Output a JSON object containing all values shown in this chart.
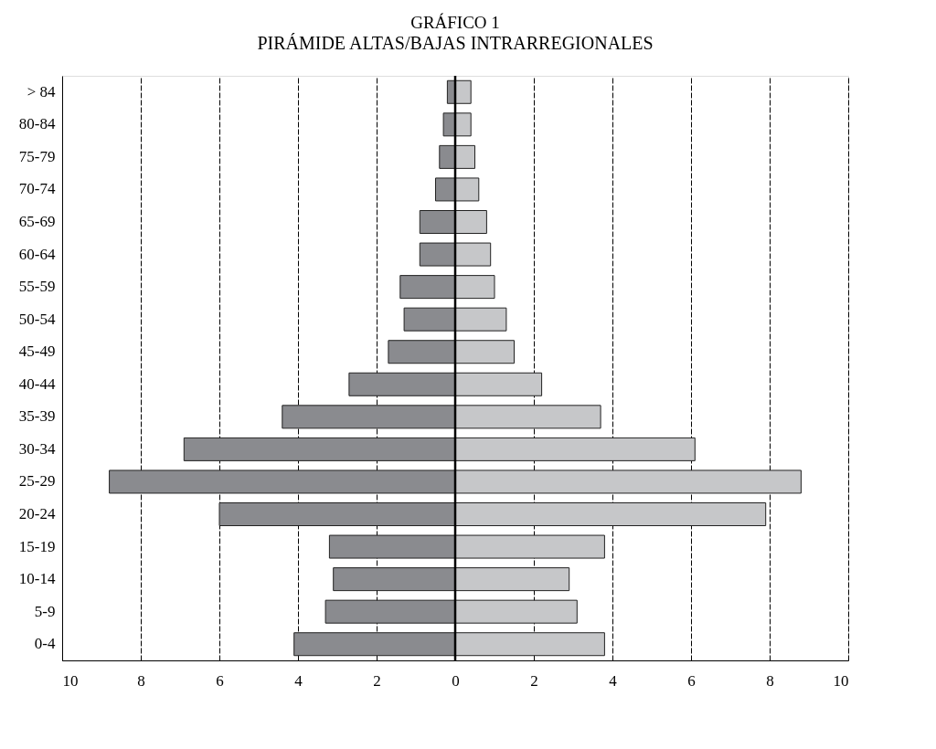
{
  "chart_data": {
    "type": "bar",
    "orientation": "horizontal",
    "title": "GRÁFICO 1",
    "subtitle": "PIRÁMIDE ALTAS/BAJAS INTRARREGIONALES",
    "categories": [
      "> 84",
      "80-84",
      "75-79",
      "70-74",
      "65-69",
      "60-64",
      "55-59",
      "50-54",
      "45-49",
      "40-44",
      "35-39",
      "30-34",
      "25-29",
      "20-24",
      "15-19",
      "10-14",
      "5-9",
      "0-4"
    ],
    "series": [
      {
        "color": "#8a8b8f",
        "values": [
          -0.2,
          -0.3,
          -0.4,
          -0.5,
          -0.9,
          -0.9,
          -1.4,
          -1.3,
          -1.7,
          -2.7,
          -4.4,
          -6.9,
          -8.8,
          -6.0,
          -3.2,
          -3.1,
          -3.3,
          -4.1
        ]
      },
      {
        "color": "#c6c7c9",
        "values": [
          0.4,
          0.4,
          0.5,
          0.6,
          0.8,
          0.9,
          1.0,
          1.3,
          1.5,
          2.2,
          3.7,
          6.1,
          8.8,
          7.9,
          3.8,
          2.9,
          3.1,
          3.8
        ]
      }
    ],
    "xlim": [
      -10,
      10
    ],
    "xticks": [
      {
        "value": -10,
        "label": "10"
      },
      {
        "value": -8,
        "label": "8"
      },
      {
        "value": -6,
        "label": "6"
      },
      {
        "value": -4,
        "label": "4"
      },
      {
        "value": -2,
        "label": "2"
      },
      0,
      2,
      4,
      6,
      8,
      10
    ],
    "grid": "x",
    "stacked": true,
    "ref_lines": [
      {
        "axis": "x",
        "value": 0,
        "color": "#000000"
      }
    ]
  }
}
